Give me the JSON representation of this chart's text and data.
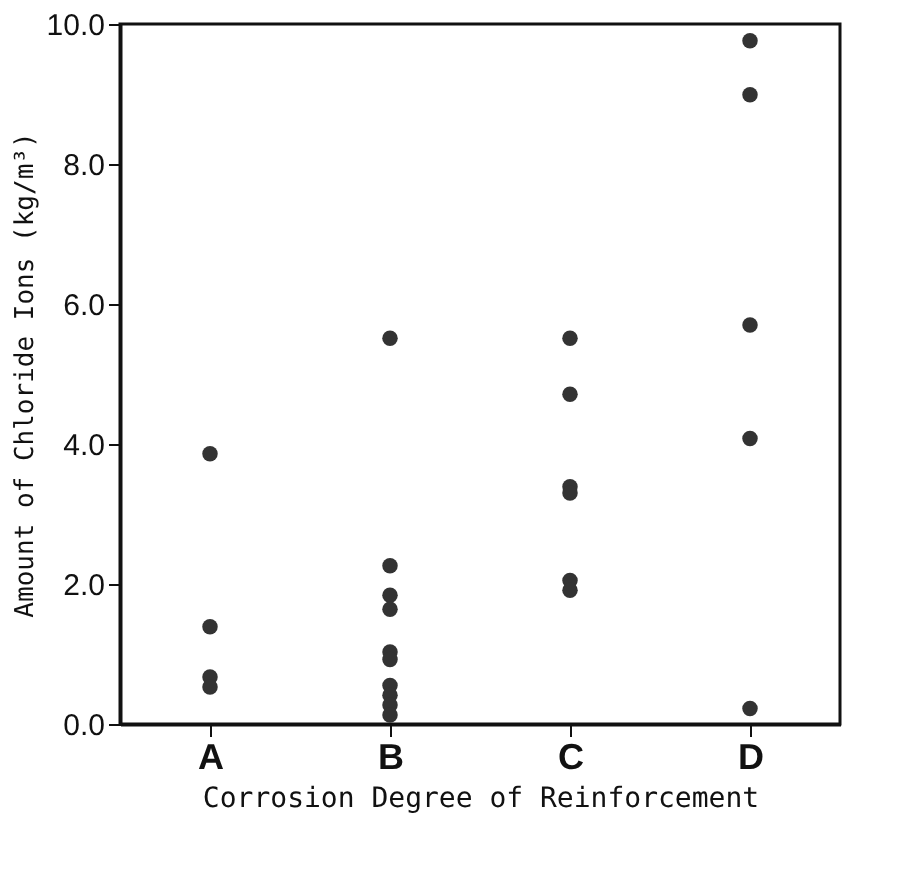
{
  "chart_data": {
    "type": "scatter",
    "xlabel": "Corrosion Degree of Reinforcement",
    "ylabel": "Amount of Chloride Ions (kg/m³)",
    "categories": [
      "A",
      "B",
      "C",
      "D"
    ],
    "series": [
      {
        "color": "#333333",
        "x": [
          "A",
          "A",
          "A",
          "A",
          "B",
          "B",
          "B",
          "B",
          "B",
          "B",
          "B",
          "B",
          "B",
          "B",
          "C",
          "C",
          "C",
          "C",
          "C",
          "C",
          "D",
          "D",
          "D",
          "D",
          "D"
        ],
        "values": [
          3.86,
          1.39,
          0.67,
          0.53,
          5.51,
          2.26,
          1.84,
          1.64,
          1.03,
          0.92,
          0.55,
          0.41,
          0.27,
          0.13,
          5.51,
          4.71,
          3.39,
          3.3,
          2.05,
          1.91,
          9.76,
          8.99,
          5.7,
          4.08,
          0.22
        ]
      }
    ],
    "ylim": [
      0,
      10
    ],
    "yticks": [
      {
        "value": 0,
        "label": "0.0"
      },
      {
        "value": 2,
        "label": "2.0"
      },
      {
        "value": 4,
        "label": "4.0"
      },
      {
        "value": 6,
        "label": "6.0"
      },
      {
        "value": 8,
        "label": "8.0"
      },
      {
        "value": 10,
        "label": "10.0"
      }
    ],
    "marker": "circle",
    "grid": false
  }
}
